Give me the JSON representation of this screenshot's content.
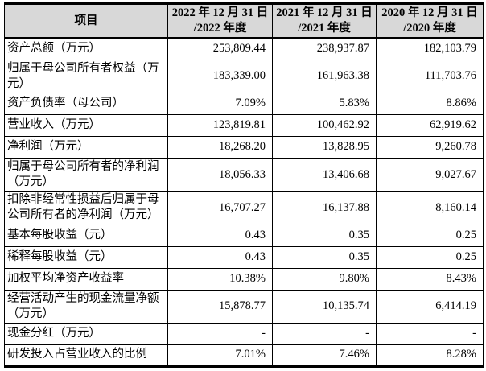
{
  "table": {
    "header": {
      "item": "项目",
      "cols": [
        {
          "line1": "2022 年 12 月 31 日",
          "line2": "/2022 年度"
        },
        {
          "line1": "2021 年 12 月 31 日",
          "line2": "/2021 年度"
        },
        {
          "line1": "2020 年 12 月 31 日",
          "line2": "/2020 年度"
        }
      ]
    },
    "rows": [
      {
        "label": "资产总额（万元）",
        "values": [
          "253,809.44",
          "238,937.87",
          "182,103.79"
        ]
      },
      {
        "label": "归属于母公司所有者权益（万元）",
        "values": [
          "183,339.00",
          "161,963.38",
          "111,703.76"
        ]
      },
      {
        "label": "资产负债率（母公司）",
        "values": [
          "7.09%",
          "5.83%",
          "8.86%"
        ]
      },
      {
        "label": "营业收入（万元）",
        "values": [
          "123,819.81",
          "100,462.92",
          "62,919.62"
        ]
      },
      {
        "label": "净利润（万元）",
        "values": [
          "18,268.20",
          "13,828.95",
          "9,260.78"
        ]
      },
      {
        "label": "归属于母公司所有者的净利润（万元）",
        "values": [
          "18,056.33",
          "13,406.68",
          "9,027.67"
        ]
      },
      {
        "label": "扣除非经常性损益后归属于母公司所有者的净利润（万元）",
        "values": [
          "16,707.27",
          "16,137.88",
          "8,160.14"
        ]
      },
      {
        "label": "基本每股收益（元）",
        "values": [
          "0.43",
          "0.35",
          "0.25"
        ]
      },
      {
        "label": "稀释每股收益（元）",
        "values": [
          "0.43",
          "0.35",
          "0.25"
        ]
      },
      {
        "label": "加权平均净资产收益率",
        "values": [
          "10.38%",
          "9.80%",
          "8.43%"
        ]
      },
      {
        "label": "经营活动产生的现金流量净额（万元）",
        "values": [
          "15,878.77",
          "10,135.74",
          "6,414.19"
        ]
      },
      {
        "label": "现金分红（万元）",
        "values": [
          "-",
          "-",
          "-"
        ]
      },
      {
        "label": "研发投入占营业收入的比例",
        "values": [
          "7.01%",
          "7.46%",
          "8.28%"
        ]
      }
    ],
    "colors": {
      "header_bg": "#d8d8d8",
      "border": "#000000",
      "text": "#000000"
    }
  }
}
